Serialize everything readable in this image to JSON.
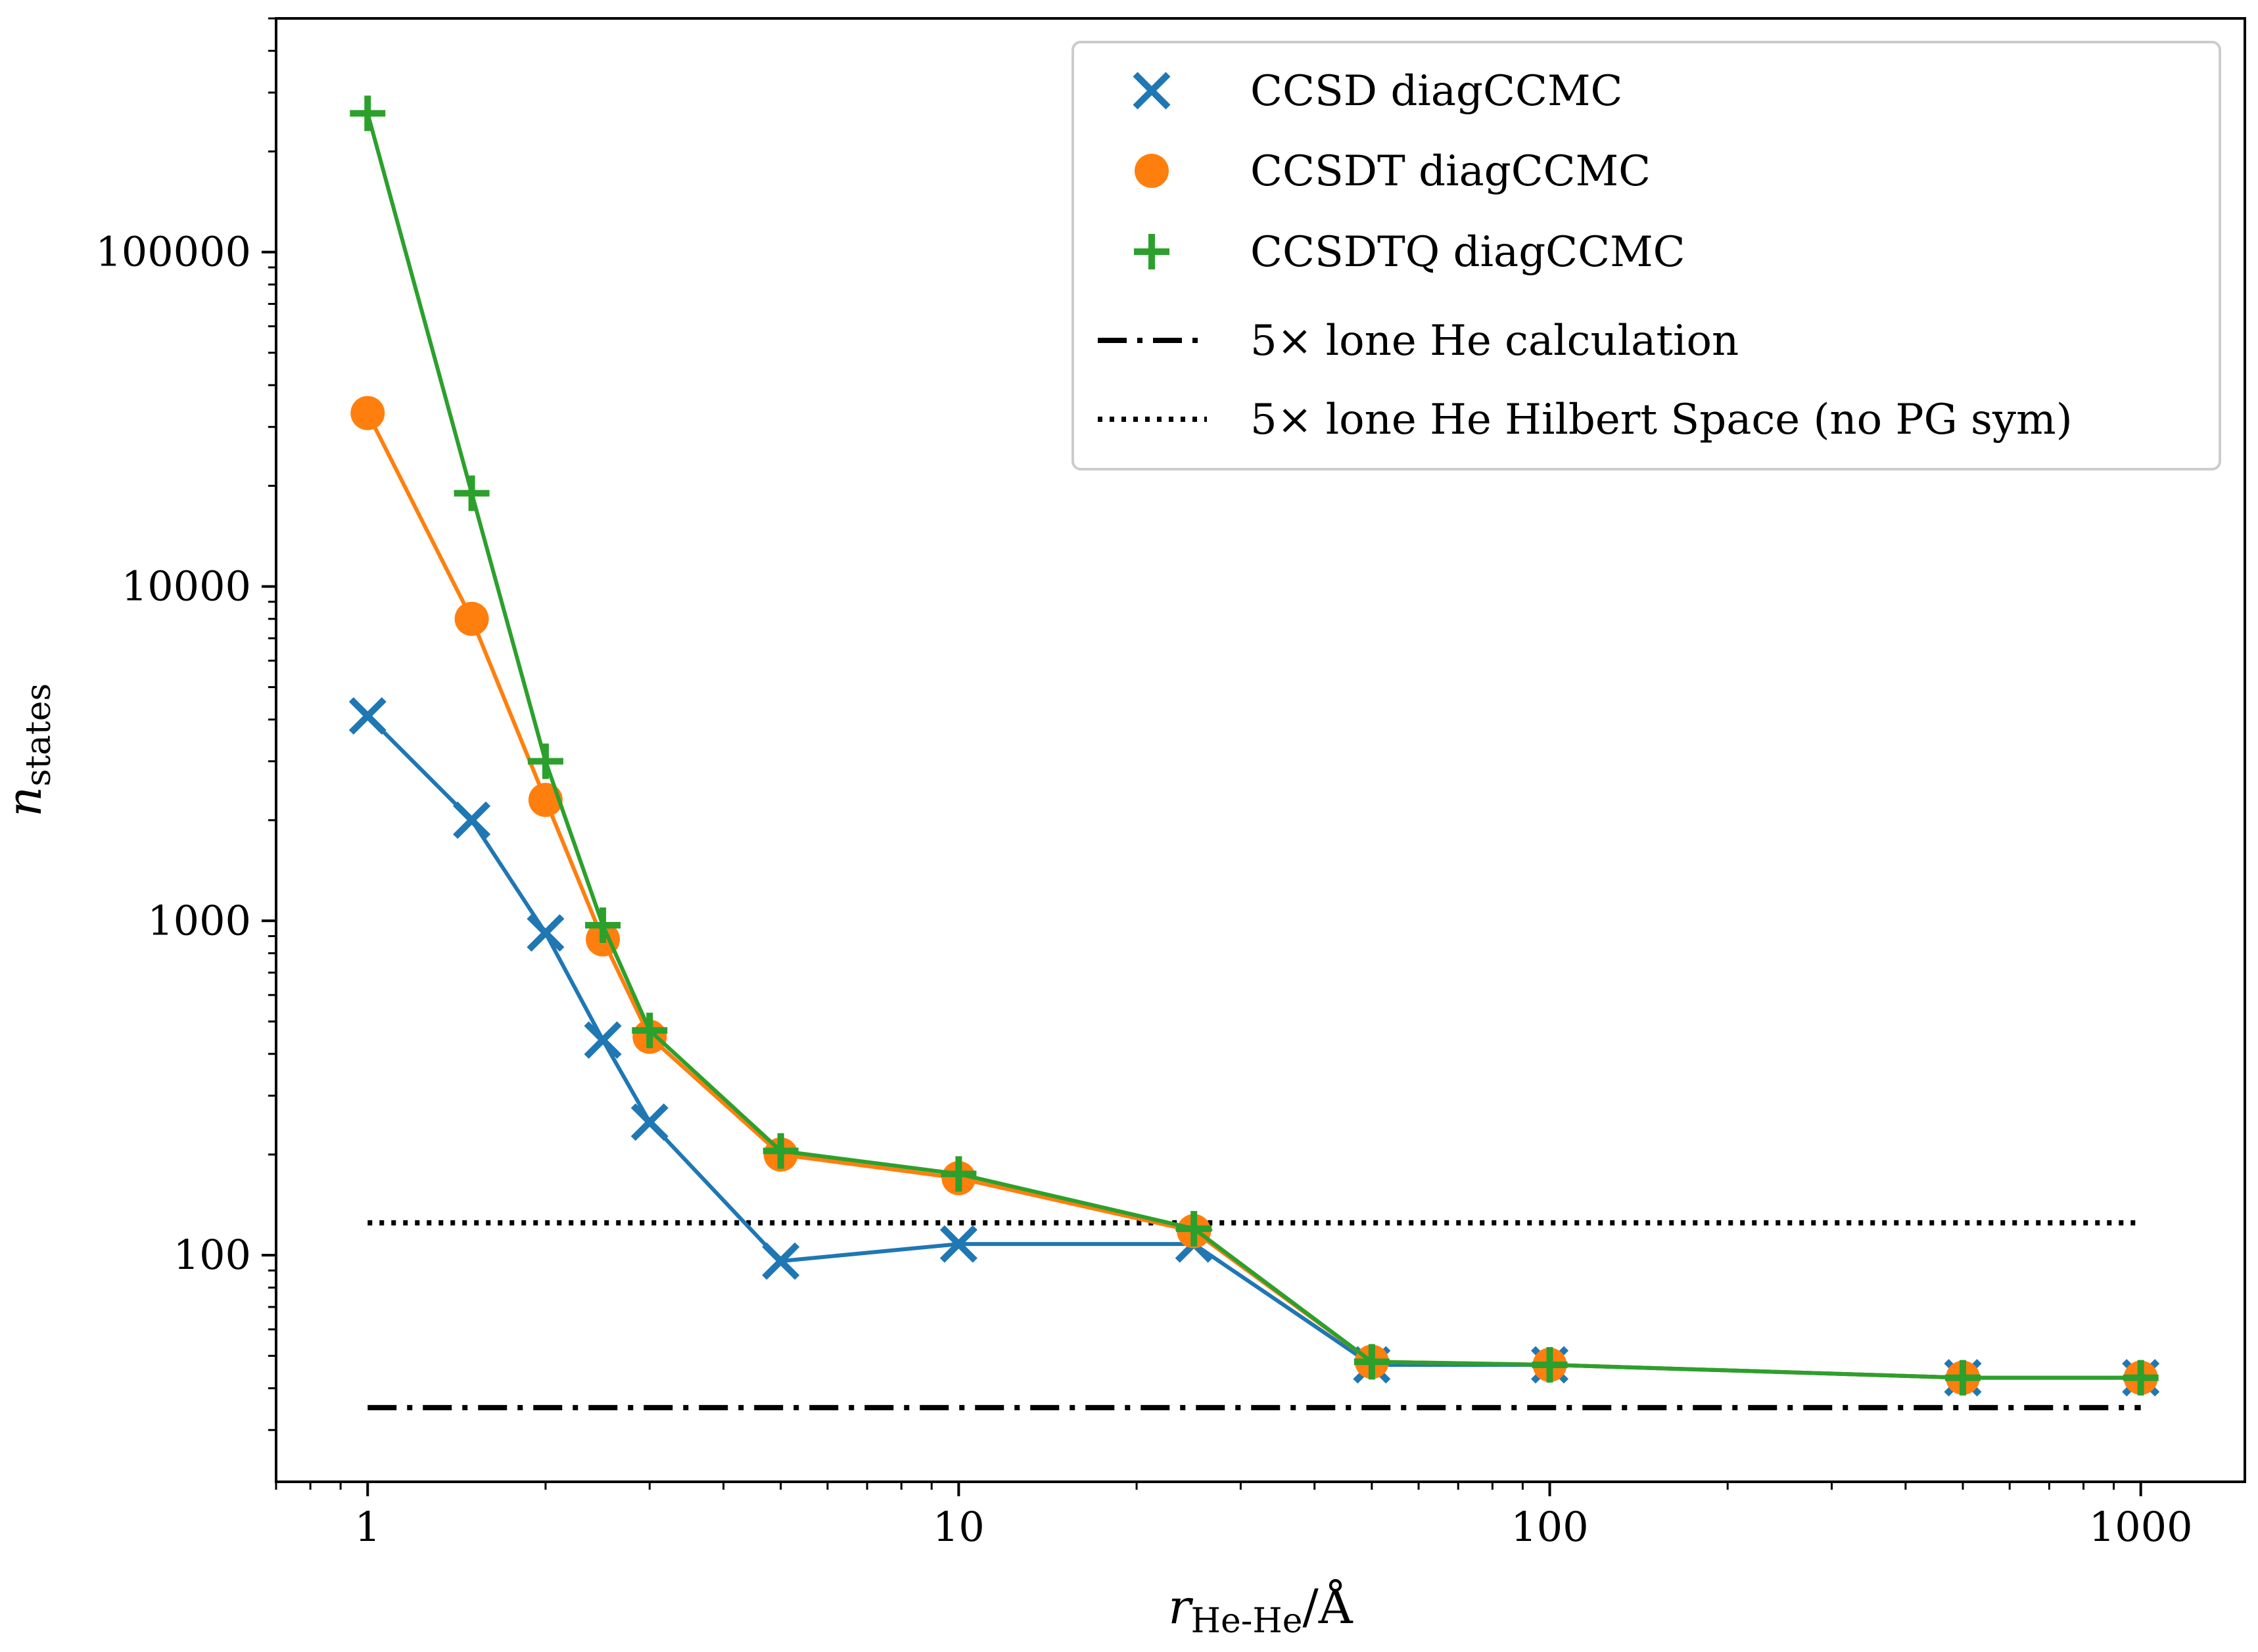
{
  "chart_data": {
    "type": "line",
    "xscale": "log",
    "yscale": "log",
    "xlim": [
      0.7,
      1500
    ],
    "ylim": [
      21,
      500000
    ],
    "xlabel": {
      "main": "r",
      "sub": "He-He",
      "unit": "/Å"
    },
    "ylabel": {
      "main": "n",
      "sub": "states"
    },
    "xticks": [
      {
        "value": 1,
        "label": "1"
      },
      {
        "value": 10,
        "label": "10"
      },
      {
        "value": 100,
        "label": "100"
      },
      {
        "value": 1000,
        "label": "1000"
      }
    ],
    "yticks": [
      {
        "value": 100,
        "label": "100"
      },
      {
        "value": 1000,
        "label": "1000"
      },
      {
        "value": 10000,
        "label": "10000"
      },
      {
        "value": 100000,
        "label": "100000"
      }
    ],
    "series": [
      {
        "name": "CCSD diagCCMC",
        "color": "#1f77b4",
        "marker": "x",
        "x": [
          1,
          1.5,
          2,
          2.5,
          3,
          5,
          10,
          25,
          50,
          100,
          500,
          1000
        ],
        "y": [
          4100,
          2000,
          920,
          440,
          250,
          96,
          108,
          108,
          47,
          47,
          43,
          43
        ]
      },
      {
        "name": "CCSDT diagCCMC",
        "color": "#ff7f0e",
        "marker": "circle",
        "x": [
          1,
          1.5,
          2,
          2.5,
          3,
          5,
          10,
          25,
          50,
          100,
          500,
          1000
        ],
        "y": [
          33000,
          8000,
          2300,
          880,
          450,
          200,
          170,
          118,
          48,
          47,
          43,
          43
        ]
      },
      {
        "name": "CCSDTQ diagCCMC",
        "color": "#2ca02c",
        "marker": "plus",
        "x": [
          1,
          1.5,
          2,
          2.5,
          3,
          5,
          10,
          25,
          50,
          100,
          500,
          1000
        ],
        "y": [
          260000,
          19000,
          3000,
          970,
          470,
          205,
          175,
          120,
          48,
          47,
          43,
          43
        ]
      }
    ],
    "reference_lines": [
      {
        "name": "5× lone He calculation",
        "style": "dashdot",
        "color": "#000000",
        "y": 35,
        "x": [
          1,
          1000
        ]
      },
      {
        "name": "5× lone He Hilbert Space (no PG sym)",
        "style": "dotted",
        "color": "#000000",
        "y": 125,
        "x": [
          1,
          1000
        ]
      }
    ],
    "legend_placement": "top-right",
    "grid": false
  }
}
